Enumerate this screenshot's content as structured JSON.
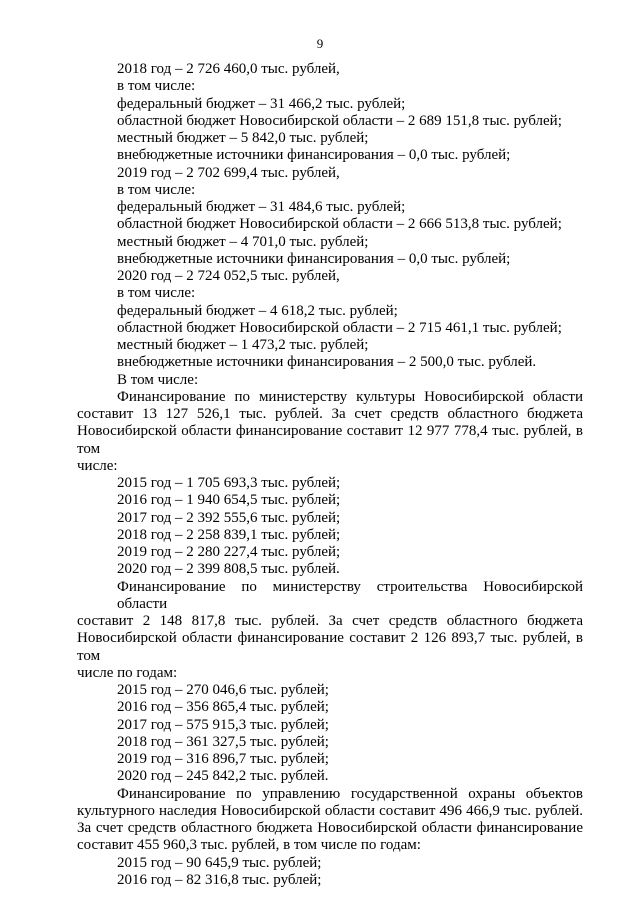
{
  "page_number": "9",
  "lines": [
    {
      "text": "2018 год – 2 726 460,0 тыс. рублей,",
      "indent": true
    },
    {
      "text": "в том числе:",
      "indent": true
    },
    {
      "text": "федеральный бюджет – 31 466,2 тыс. рублей;",
      "indent": true
    },
    {
      "text": "областной бюджет Новосибирской области – 2 689 151,8 тыс. рублей;",
      "indent": true
    },
    {
      "text": "местный бюджет – 5 842,0 тыс. рублей;",
      "indent": true
    },
    {
      "text": "внебюджетные источники финансирования – 0,0 тыс. рублей;",
      "indent": true
    },
    {
      "text": "2019 год – 2 702 699,4 тыс. рублей,",
      "indent": true
    },
    {
      "text": "в том числе:",
      "indent": true
    },
    {
      "text": "федеральный бюджет – 31 484,6 тыс. рублей;",
      "indent": true
    },
    {
      "text": "областной бюджет Новосибирской области – 2 666 513,8 тыс. рублей;",
      "indent": true
    },
    {
      "text": "местный бюджет – 4 701,0 тыс. рублей;",
      "indent": true
    },
    {
      "text": "внебюджетные источники финансирования – 0,0 тыс. рублей;",
      "indent": true
    },
    {
      "text": "2020 год – 2 724 052,5 тыс. рублей,",
      "indent": true
    },
    {
      "text": "в том числе:",
      "indent": true
    },
    {
      "text": "федеральный бюджет – 4 618,2 тыс. рублей;",
      "indent": true
    },
    {
      "text": "областной бюджет Новосибирской области – 2 715 461,1 тыс. рублей;",
      "indent": true
    },
    {
      "text": "местный бюджет – 1 473,2 тыс. рублей;",
      "indent": true
    },
    {
      "text": "внебюджетные источники финансирования – 2 500,0 тыс. рублей.",
      "indent": true
    },
    {
      "text": "В том числе:",
      "indent": true
    },
    {
      "text": "Финансирование по министерству культуры Новосибирской области",
      "indent": true,
      "justify": true
    },
    {
      "text": "составит  13 127 526,1 тыс. рублей.  За  счет  средств  областного  бюджета",
      "indent": false,
      "justify": true
    },
    {
      "text": "Новосибирской области финансирование составит 12 977 778,4 тыс. рублей, в том",
      "indent": false,
      "justify": true
    },
    {
      "text": "числе:",
      "indent": false
    },
    {
      "text": "2015 год – 1 705 693,3 тыс. рублей;",
      "indent": true
    },
    {
      "text": "2016 год – 1 940 654,5 тыс. рублей;",
      "indent": true
    },
    {
      "text": "2017 год – 2 392 555,6 тыс. рублей;",
      "indent": true
    },
    {
      "text": "2018 год – 2 258 839,1 тыс. рублей;",
      "indent": true
    },
    {
      "text": "2019 год – 2 280 227,4 тыс. рублей;",
      "indent": true
    },
    {
      "text": "2020 год – 2 399 808,5 тыс. рублей.",
      "indent": true
    },
    {
      "text": "Финансирование по министерству строительства Новосибирской области",
      "indent": true,
      "justify": true
    },
    {
      "text": "составит 2 148 817,8 тыс. рублей.    За    счет    средств    областного    бюджета",
      "indent": false,
      "justify": true
    },
    {
      "text": "Новосибирской области финансирование составит 2 126 893,7 тыс. рублей, в том",
      "indent": false,
      "justify": true
    },
    {
      "text": "числе по годам:",
      "indent": false
    },
    {
      "text": "2015 год – 270 046,6 тыс. рублей;",
      "indent": true
    },
    {
      "text": "2016 год – 356 865,4 тыс. рублей;",
      "indent": true
    },
    {
      "text": "2017 год – 575 915,3 тыс. рублей;",
      "indent": true
    },
    {
      "text": "2018 год – 361 327,5 тыс. рублей;",
      "indent": true
    },
    {
      "text": "2019 год – 316 896,7 тыс. рублей;",
      "indent": true
    },
    {
      "text": "2020 год – 245 842,2 тыс. рублей.",
      "indent": true
    },
    {
      "text": "Финансирование по управлению государственной охраны объектов",
      "indent": true,
      "justify": true
    },
    {
      "text": "культурного наследия Новосибирской области составит 496 466,9 тыс. рублей.",
      "indent": false,
      "justify": true
    },
    {
      "text": "За счет средств областного бюджета Новосибирской области финансирование",
      "indent": false,
      "justify": true
    },
    {
      "text": "составит 455 960,3 тыс. рублей, в том числе по годам:",
      "indent": false
    },
    {
      "text": "2015 год – 90 645,9 тыс. рублей;",
      "indent": true
    },
    {
      "text": "2016 год – 82 316,8 тыс. рублей;",
      "indent": true
    }
  ]
}
